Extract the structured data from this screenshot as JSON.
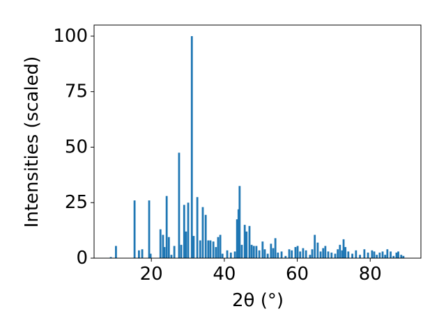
{
  "chart_data": {
    "type": "bar",
    "x": [
      8.9,
      10.3,
      15.4,
      16.6,
      17.5,
      19.4,
      19.8,
      22.5,
      23.2,
      23.6,
      24.2,
      24.8,
      25.5,
      26.3,
      27.6,
      28.2,
      29.0,
      29.5,
      30.1,
      31.1,
      31.6,
      32.6,
      33.4,
      34.1,
      34.9,
      35.6,
      36.2,
      37.0,
      37.7,
      38.3,
      38.9,
      39.5,
      40.8,
      41.8,
      42.9,
      43.5,
      43.9,
      44.2,
      44.8,
      45.6,
      46.1,
      46.9,
      47.5,
      48.1,
      48.8,
      49.6,
      50.5,
      51.1,
      51.9,
      52.8,
      53.4,
      54.0,
      54.7,
      55.7,
      56.8,
      57.8,
      58.5,
      59.5,
      60.1,
      60.8,
      61.6,
      62.4,
      63.5,
      64.1,
      64.8,
      65.6,
      66.4,
      67.1,
      67.7,
      68.5,
      69.4,
      70.4,
      71.1,
      71.7,
      72.3,
      72.7,
      73.2,
      74.0,
      75.1,
      76.1,
      77.2,
      78.4,
      79.4,
      80.5,
      81.1,
      81.8,
      82.6,
      83.4,
      84.1,
      84.7,
      85.6,
      86.4,
      87.2,
      87.7,
      88.5,
      89.1
    ],
    "values": [
      0.5,
      5.5,
      26,
      3.5,
      4,
      26,
      2,
      13,
      10.5,
      5,
      28,
      9.5,
      1.5,
      5.5,
      47.5,
      6,
      24,
      12,
      25,
      100,
      10,
      27.5,
      8,
      23,
      19.5,
      8,
      8,
      7.5,
      5,
      9.5,
      10.5,
      2,
      3.5,
      2.5,
      3,
      17.5,
      22,
      32.5,
      6,
      15,
      12,
      14.5,
      6,
      5.5,
      5.5,
      3.5,
      7.5,
      4,
      2,
      6.5,
      4.5,
      9,
      2.5,
      3,
      1,
      4,
      3.5,
      5,
      5.5,
      3,
      4.5,
      3.5,
      1.5,
      4,
      10.5,
      7,
      3,
      4.5,
      5.5,
      3,
      2.5,
      2,
      4,
      6,
      3.5,
      8.5,
      5,
      3,
      2,
      3.5,
      1.5,
      4,
      2.5,
      3.5,
      3,
      1.5,
      2.5,
      3,
      1.5,
      4,
      3,
      1,
      2.5,
      3,
      1.5,
      1
    ],
    "color": "#1f77b4",
    "xlabel": "2θ (°)",
    "ylabel": "Intensities (scaled)",
    "xlim": [
      4.3,
      93.9
    ],
    "ylim": [
      0,
      105
    ],
    "xticks": [
      20,
      40,
      60,
      80
    ],
    "yticks": [
      0,
      25,
      50,
      75,
      100
    ]
  }
}
